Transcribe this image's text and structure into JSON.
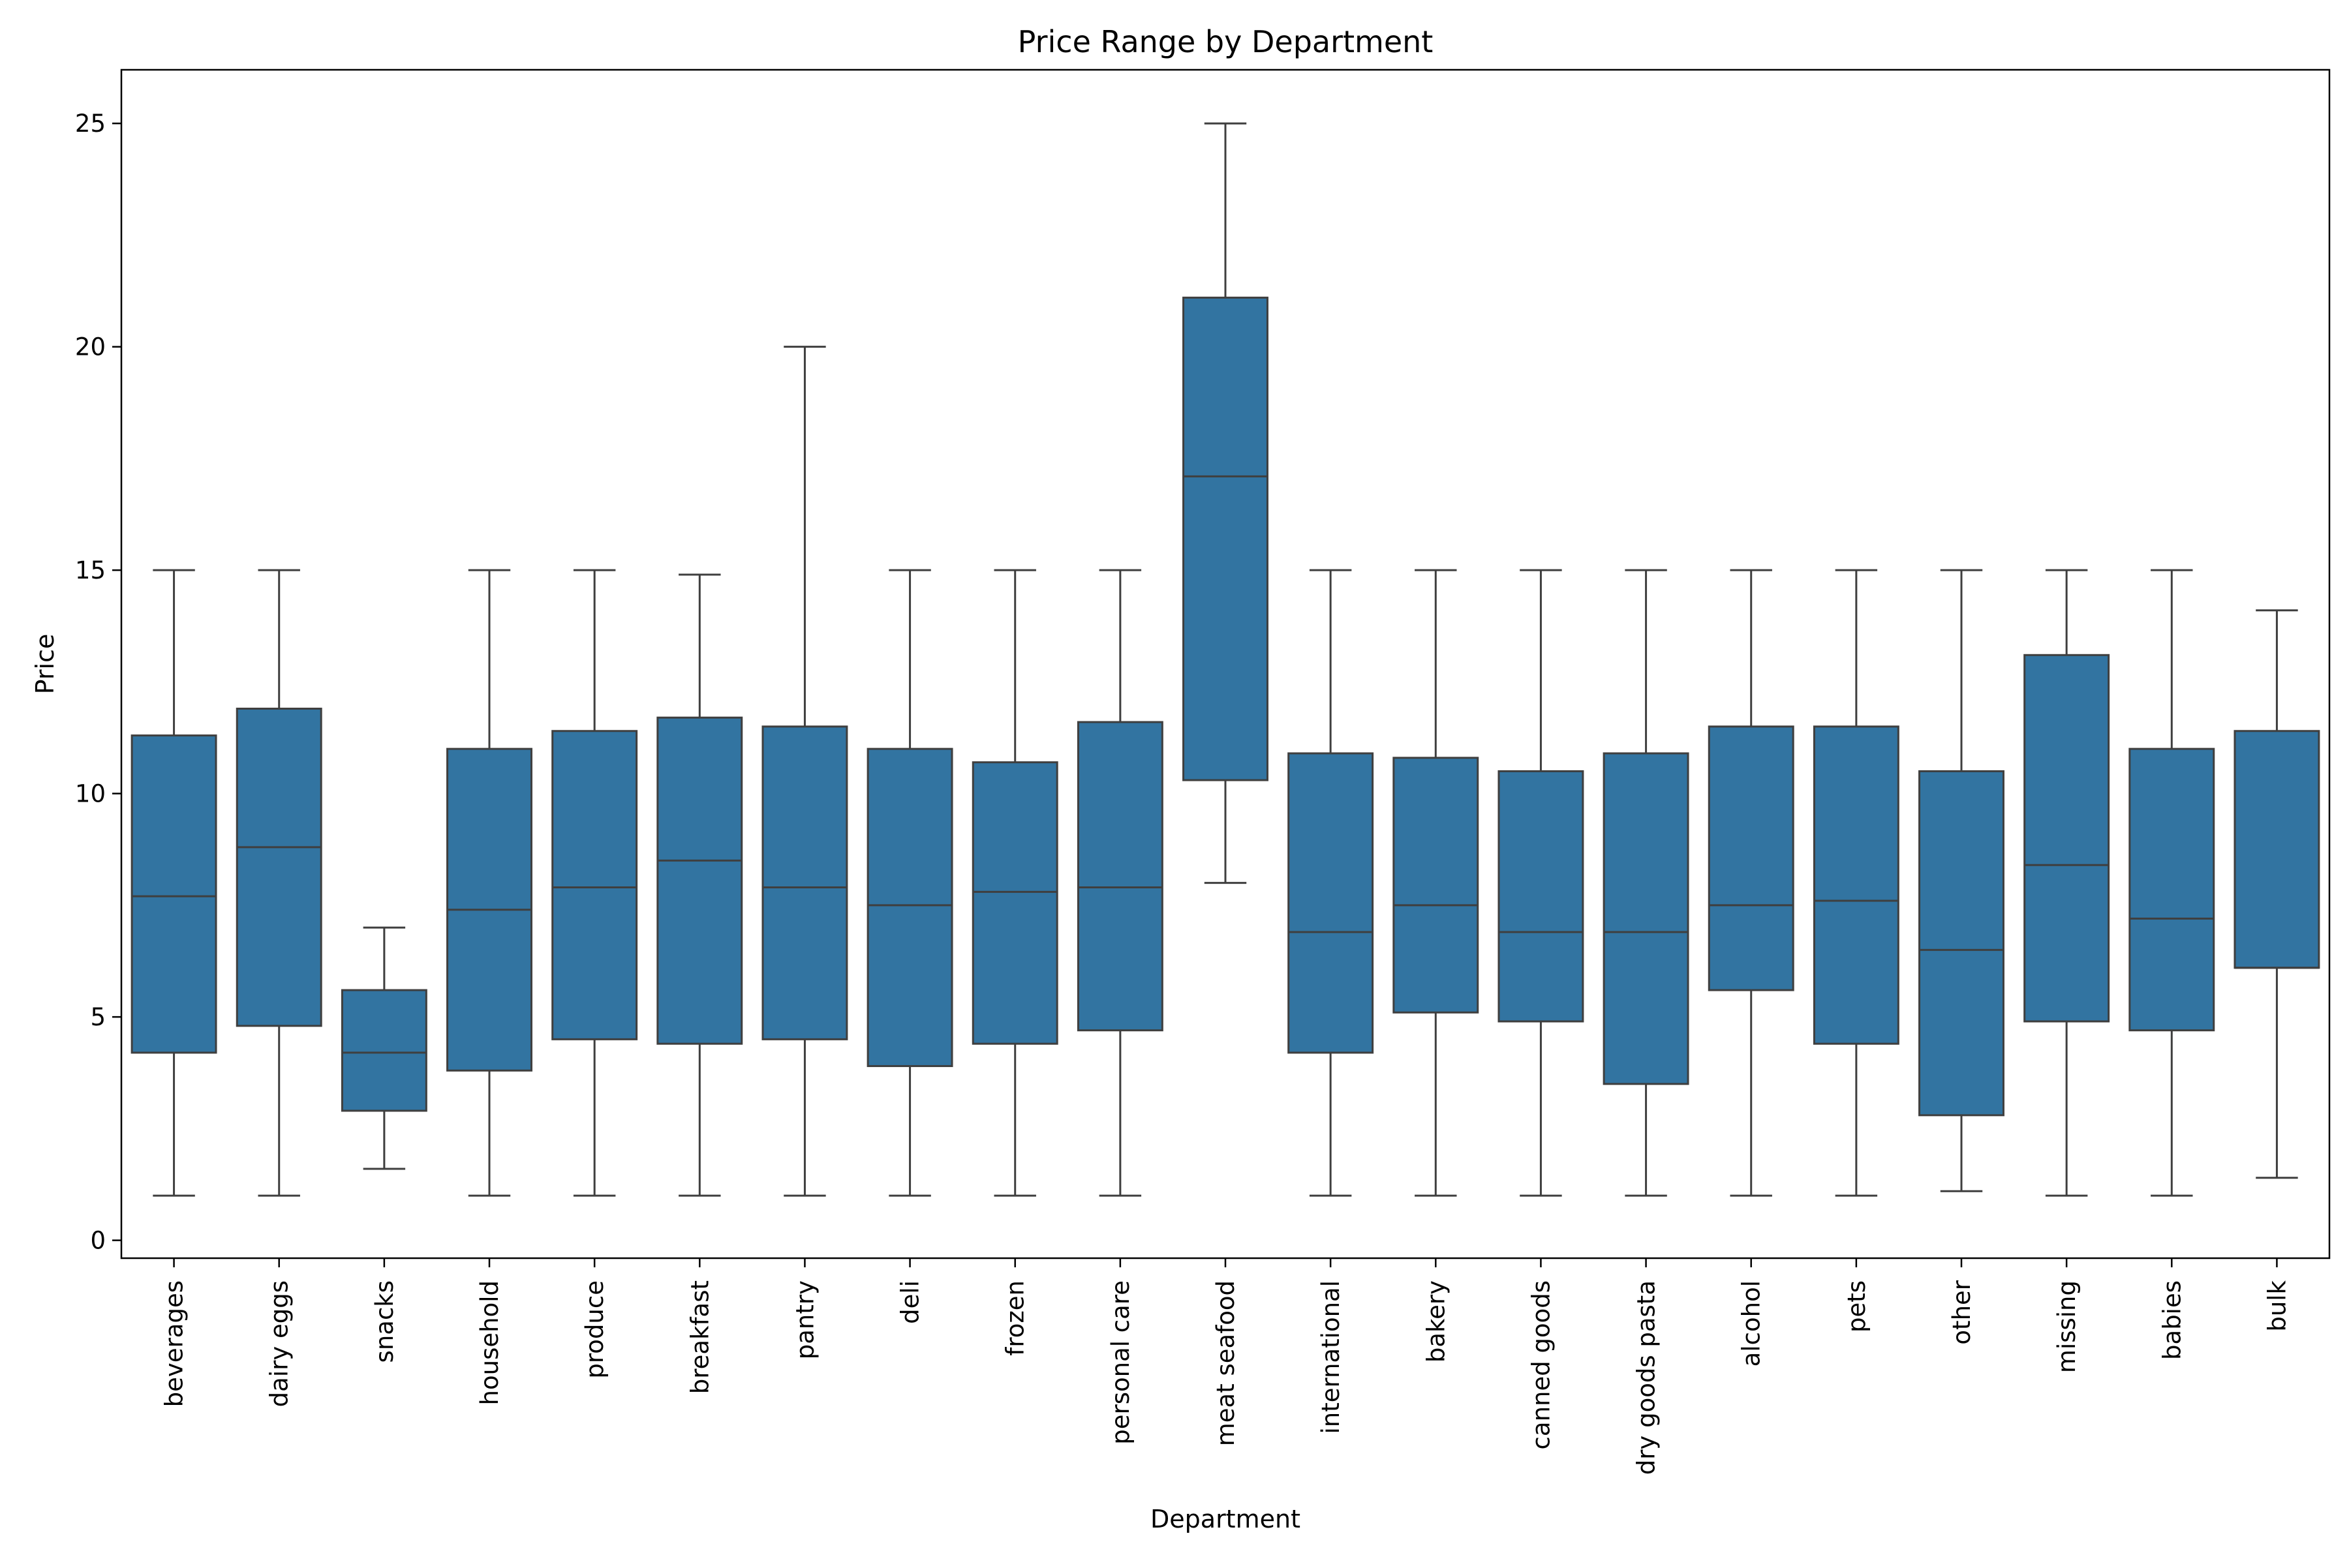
{
  "chart_data": {
    "type": "box",
    "title": "Price Range by Department",
    "xlabel": "Department",
    "ylabel": "Price",
    "ylim": [
      -0.4,
      26.2
    ],
    "yticks": [
      0,
      5,
      10,
      15,
      20,
      25
    ],
    "grid": false,
    "legend": "none",
    "box_color": "#3274a1",
    "line_color": "#3f3f3f",
    "categories": [
      "beverages",
      "dairy eggs",
      "snacks",
      "household",
      "produce",
      "breakfast",
      "pantry",
      "deli",
      "frozen",
      "personal care",
      "meat seafood",
      "international",
      "bakery",
      "canned goods",
      "dry goods pasta",
      "alcohol",
      "pets",
      "other",
      "missing",
      "babies",
      "bulk"
    ],
    "boxes": [
      {
        "category": "beverages",
        "whislo": 1.0,
        "q1": 4.2,
        "med": 7.7,
        "q3": 11.3,
        "whishi": 15.0
      },
      {
        "category": "dairy eggs",
        "whislo": 1.0,
        "q1": 4.8,
        "med": 8.8,
        "q3": 11.9,
        "whishi": 15.0
      },
      {
        "category": "snacks",
        "whislo": 1.6,
        "q1": 2.9,
        "med": 4.2,
        "q3": 5.6,
        "whishi": 7.0
      },
      {
        "category": "household",
        "whislo": 1.0,
        "q1": 3.8,
        "med": 7.4,
        "q3": 11.0,
        "whishi": 15.0
      },
      {
        "category": "produce",
        "whislo": 1.0,
        "q1": 4.5,
        "med": 7.9,
        "q3": 11.4,
        "whishi": 15.0
      },
      {
        "category": "breakfast",
        "whislo": 1.0,
        "q1": 4.4,
        "med": 8.5,
        "q3": 11.7,
        "whishi": 14.9
      },
      {
        "category": "pantry",
        "whislo": 1.0,
        "q1": 4.5,
        "med": 7.9,
        "q3": 11.5,
        "whishi": 20.0
      },
      {
        "category": "deli",
        "whislo": 1.0,
        "q1": 3.9,
        "med": 7.5,
        "q3": 11.0,
        "whishi": 15.0
      },
      {
        "category": "frozen",
        "whislo": 1.0,
        "q1": 4.4,
        "med": 7.8,
        "q3": 10.7,
        "whishi": 15.0
      },
      {
        "category": "personal care",
        "whislo": 1.0,
        "q1": 4.7,
        "med": 7.9,
        "q3": 11.6,
        "whishi": 15.0
      },
      {
        "category": "meat seafood",
        "whislo": 8.0,
        "q1": 10.3,
        "med": 17.1,
        "q3": 21.1,
        "whishi": 25.0
      },
      {
        "category": "international",
        "whislo": 1.0,
        "q1": 4.2,
        "med": 6.9,
        "q3": 10.9,
        "whishi": 15.0
      },
      {
        "category": "bakery",
        "whislo": 1.0,
        "q1": 5.1,
        "med": 7.5,
        "q3": 10.8,
        "whishi": 15.0
      },
      {
        "category": "canned goods",
        "whislo": 1.0,
        "q1": 4.9,
        "med": 6.9,
        "q3": 10.5,
        "whishi": 15.0
      },
      {
        "category": "dry goods pasta",
        "whislo": 1.0,
        "q1": 3.5,
        "med": 6.9,
        "q3": 10.9,
        "whishi": 15.0
      },
      {
        "category": "alcohol",
        "whislo": 1.0,
        "q1": 5.6,
        "med": 7.5,
        "q3": 11.5,
        "whishi": 15.0
      },
      {
        "category": "pets",
        "whislo": 1.0,
        "q1": 4.4,
        "med": 7.6,
        "q3": 11.5,
        "whishi": 15.0
      },
      {
        "category": "other",
        "whislo": 1.1,
        "q1": 2.8,
        "med": 6.5,
        "q3": 10.5,
        "whishi": 15.0
      },
      {
        "category": "missing",
        "whislo": 1.0,
        "q1": 4.9,
        "med": 8.4,
        "q3": 13.1,
        "whishi": 15.0
      },
      {
        "category": "babies",
        "whislo": 1.0,
        "q1": 4.7,
        "med": 7.2,
        "q3": 11.0,
        "whishi": 15.0
      },
      {
        "category": "bulk",
        "whislo": 1.4,
        "q1": 6.1,
        "med": 6.1,
        "q3": 11.4,
        "whishi": 14.1
      }
    ]
  }
}
